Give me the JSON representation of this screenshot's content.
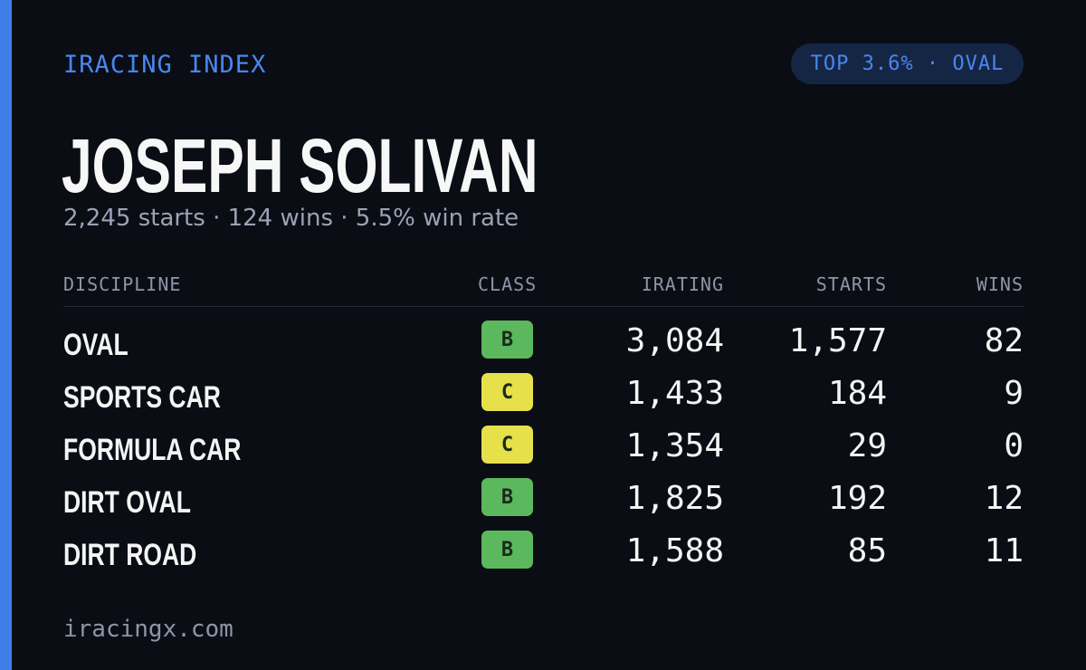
{
  "header": {
    "brand": "IRACING INDEX",
    "rank_badge": "TOP 3.6% · OVAL"
  },
  "player": {
    "name": "JOSEPH SOLIVAN",
    "summary": "2,245 starts · 124 wins · 5.5% win rate"
  },
  "table": {
    "columns": {
      "discipline": "DISCIPLINE",
      "class": "CLASS",
      "irating": "IRATING",
      "starts": "STARTS",
      "wins": "WINS"
    },
    "rows": [
      {
        "discipline": "OVAL",
        "class": "B",
        "irating": "3,084",
        "starts": "1,577",
        "wins": "82"
      },
      {
        "discipline": "SPORTS CAR",
        "class": "C",
        "irating": "1,433",
        "starts": "184",
        "wins": "9"
      },
      {
        "discipline": "FORMULA CAR",
        "class": "C",
        "irating": "1,354",
        "starts": "29",
        "wins": "0"
      },
      {
        "discipline": "DIRT OVAL",
        "class": "B",
        "irating": "1,825",
        "starts": "192",
        "wins": "12"
      },
      {
        "discipline": "DIRT ROAD",
        "class": "B",
        "irating": "1,588",
        "starts": "85",
        "wins": "11"
      }
    ]
  },
  "footer": {
    "url": "iracingx.com"
  },
  "colors": {
    "accent": "#3d7eea",
    "background": "#0a0d14",
    "class_b": "#5cb85c",
    "class_c": "#e6e04a"
  }
}
